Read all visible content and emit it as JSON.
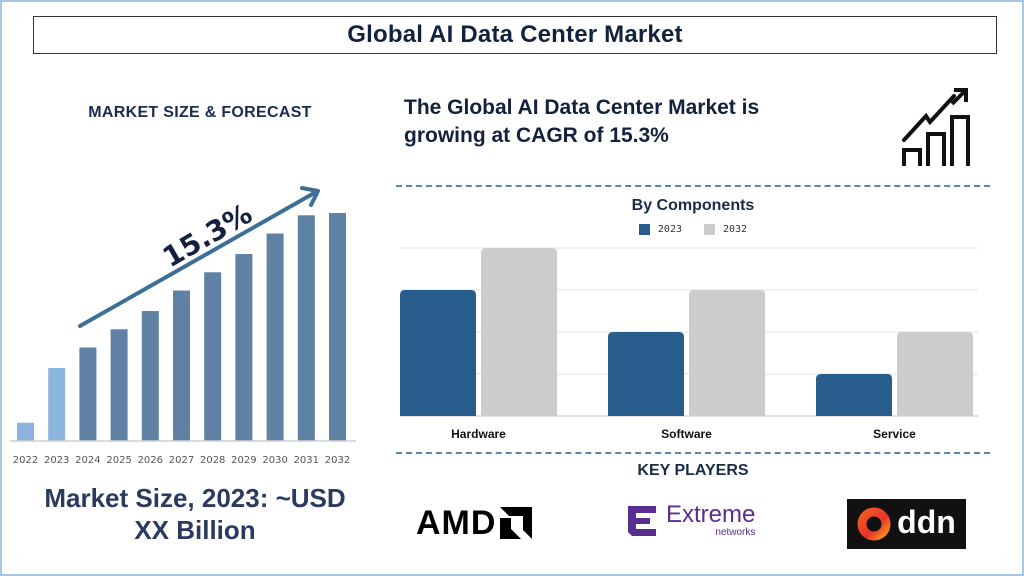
{
  "header": {
    "title": "Global AI Data Center Market"
  },
  "left_panel": {
    "heading": "MARKET SIZE & FORECAST",
    "cagr_label": "15.3%",
    "market_size_line1": "Market Size, 2023: ~USD",
    "market_size_line2": "XX Billion"
  },
  "right_panel": {
    "cagr_line1": "The Global AI Data Center Market is",
    "cagr_line2": "growing at CAGR of 15.3%",
    "icon": "growth-chart-icon",
    "components_title": "By Components",
    "key_players_title": "KEY PLAYERS",
    "key_players": [
      {
        "name": "AMD",
        "logo_text": "AMD"
      },
      {
        "name": "Extreme Networks",
        "logo_text": "Extreme",
        "logo_subtext": "networks",
        "color": "#5a2d91"
      },
      {
        "name": "DDN",
        "logo_text": "ddn"
      }
    ]
  },
  "colors": {
    "title_text": "#14213d",
    "forecast_bar": "#5f81a3",
    "historic_bar": "#8ab4de",
    "arrow": "#3d6f96",
    "series_2023": "#285c8c",
    "series_2032": "#cccccc",
    "dashed_divider": "#5b86a8"
  },
  "chart_data": [
    {
      "type": "bar",
      "title": "MARKET SIZE & FORECAST",
      "categories": [
        "2022",
        "2023",
        "2024",
        "2025",
        "2026",
        "2027",
        "2028",
        "2029",
        "2030",
        "2031",
        "2032"
      ],
      "values": [
        8,
        32,
        41,
        49,
        57,
        66,
        74,
        82,
        91,
        99,
        100
      ],
      "historic": [
        true,
        true,
        false,
        false,
        false,
        false,
        false,
        false,
        false,
        false,
        false
      ],
      "annotation": "15.3%",
      "xlabel": "",
      "ylabel": "",
      "ylim": [
        0,
        100
      ],
      "grid": false,
      "note": "Values are relative (no y-axis shown); 2032 = 100"
    },
    {
      "type": "bar",
      "title": "By Components",
      "categories": [
        "Hardware",
        "Software",
        "Service"
      ],
      "series": [
        {
          "name": "2023",
          "values": [
            3,
            2,
            1
          ]
        },
        {
          "name": "2032",
          "values": [
            4,
            3,
            2
          ]
        }
      ],
      "xlabel": "",
      "ylabel": "",
      "ylim": [
        0,
        4
      ],
      "grid": true,
      "legend": "top-center",
      "note": "Relative values measured in gridline steps; no y-axis labels shown"
    }
  ]
}
